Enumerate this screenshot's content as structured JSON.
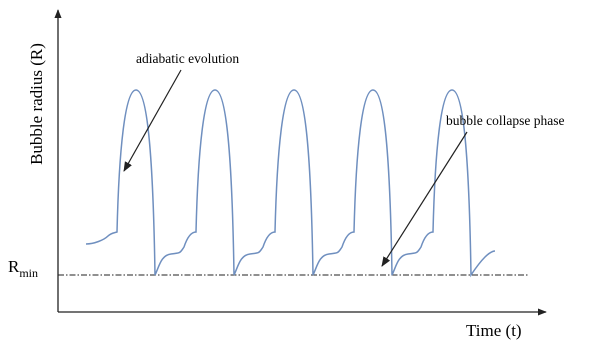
{
  "chart_data": {
    "type": "line",
    "title": "",
    "xlabel": "Time (t)",
    "ylabel": "Bubble radius  (R)",
    "reference_line": {
      "label_main": "R",
      "label_sub": "min",
      "style": "dash-dot"
    },
    "annotations": [
      {
        "text": "adiabatic evolution",
        "points_to": "rising edge of first pulse"
      },
      {
        "text": "bubble collapse phase",
        "points_to": "minimum after fourth pulse"
      }
    ],
    "pulse_count": 5,
    "grid": false,
    "legend": "none",
    "line_color": "#6f8fbf"
  }
}
